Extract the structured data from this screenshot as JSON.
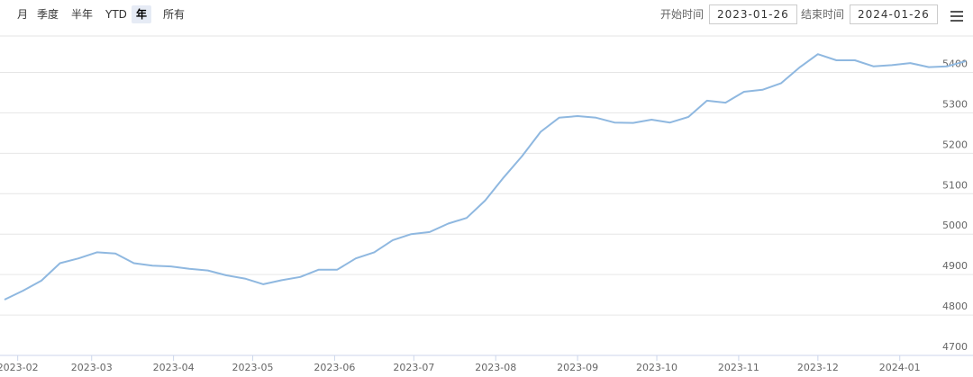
{
  "toolbar": {
    "ranges": [
      "月",
      "季度",
      "半年",
      "YTD",
      "年",
      "所有"
    ],
    "selected": 4,
    "start_label": "开始时间",
    "start": "2023-01-26",
    "end_label": "结束时间",
    "end": "2024-01-26"
  },
  "chart_data": {
    "type": "line",
    "x": [
      "2023-01-27",
      "2023-02-03",
      "2023-02-10",
      "2023-02-17",
      "2023-02-24",
      "2023-03-03",
      "2023-03-10",
      "2023-03-17",
      "2023-03-24",
      "2023-03-31",
      "2023-04-07",
      "2023-04-14",
      "2023-04-21",
      "2023-04-28",
      "2023-05-05",
      "2023-05-12",
      "2023-05-19",
      "2023-05-26",
      "2023-06-02",
      "2023-06-09",
      "2023-06-16",
      "2023-06-23",
      "2023-06-30",
      "2023-07-07",
      "2023-07-14",
      "2023-07-21",
      "2023-07-28",
      "2023-08-04",
      "2023-08-11",
      "2023-08-18",
      "2023-08-25",
      "2023-09-01",
      "2023-09-08",
      "2023-09-15",
      "2023-09-22",
      "2023-09-29",
      "2023-10-06",
      "2023-10-13",
      "2023-10-20",
      "2023-10-27",
      "2023-11-03",
      "2023-11-10",
      "2023-11-17",
      "2023-11-24",
      "2023-12-01",
      "2023-12-08",
      "2023-12-15",
      "2023-12-22",
      "2023-12-29",
      "2024-01-05",
      "2024-01-12",
      "2024-01-19",
      "2024-01-26"
    ],
    "series": [
      {
        "color": "#8fb8e0",
        "values": [
          4838,
          4860,
          4885,
          4928,
          4940,
          4955,
          4952,
          4928,
          4922,
          4920,
          4914,
          4910,
          4898,
          4890,
          4876,
          4886,
          4894,
          4912,
          4912,
          4940,
          4955,
          4985,
          5000,
          5005,
          5026,
          5040,
          5083,
          5140,
          5193,
          5253,
          5288,
          5292,
          5288,
          5276,
          5275,
          5283,
          5276,
          5290,
          5330,
          5325,
          5352,
          5357,
          5373,
          5412,
          5445,
          5430,
          5430,
          5415,
          5418,
          5423,
          5413,
          5415,
          5428
        ]
      }
    ],
    "xlim": [
      "2023-01-27",
      "2024-01-26"
    ],
    "xticks": [
      {
        "value": "2023-02-01",
        "label": "2023-02"
      },
      {
        "value": "2023-03-01",
        "label": "2023-03"
      },
      {
        "value": "2023-04-01",
        "label": "2023-04"
      },
      {
        "value": "2023-05-01",
        "label": "2023-05"
      },
      {
        "value": "2023-06-01",
        "label": "2023-06"
      },
      {
        "value": "2023-07-01",
        "label": "2023-07"
      },
      {
        "value": "2023-08-01",
        "label": "2023-08"
      },
      {
        "value": "2023-09-01",
        "label": "2023-09"
      },
      {
        "value": "2023-10-01",
        "label": "2023-10"
      },
      {
        "value": "2023-11-01",
        "label": "2023-11"
      },
      {
        "value": "2023-12-01",
        "label": "2023-12"
      },
      {
        "value": "2024-01-01",
        "label": "2024-01"
      }
    ],
    "ylim": [
      4700,
      5490
    ],
    "yticks": [
      4700,
      4800,
      4900,
      5000,
      5100,
      5200,
      5300,
      5400
    ],
    "grid": true
  }
}
